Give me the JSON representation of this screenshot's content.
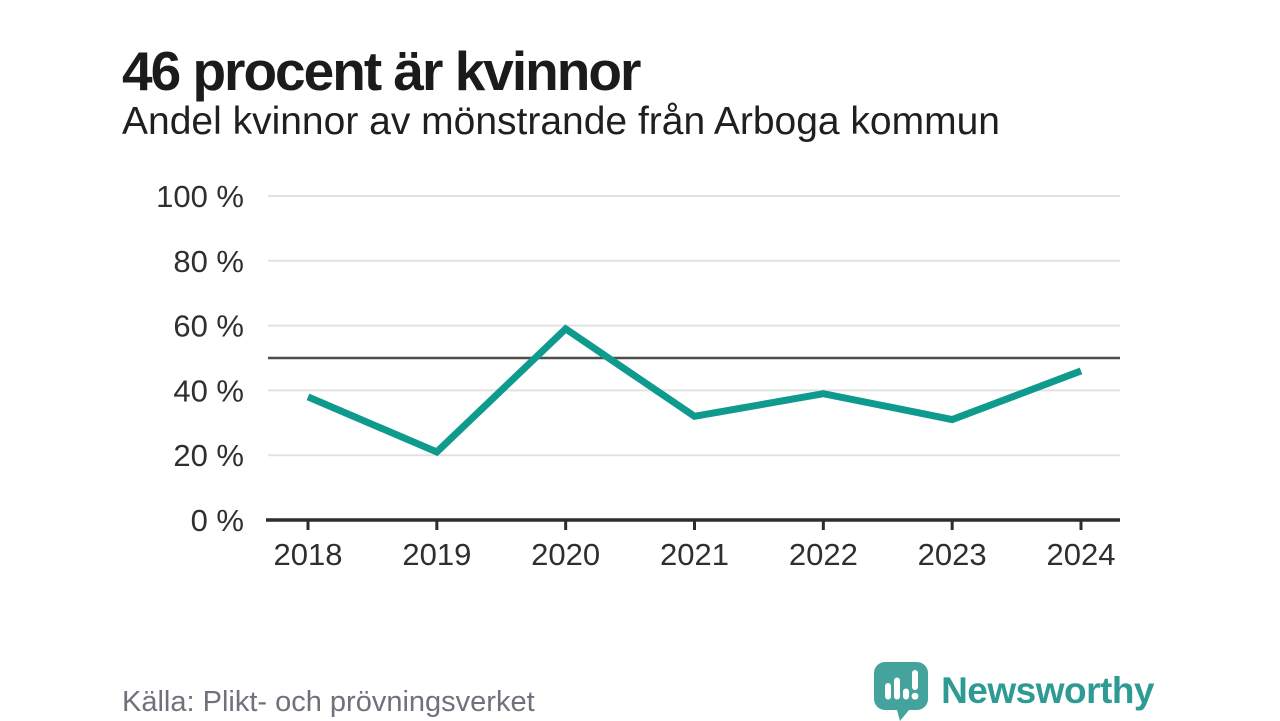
{
  "header": {
    "title": "46 procent är kvinnor",
    "subtitle": "Andel kvinnor av mönstrande från Arboga kommun"
  },
  "chart_data": {
    "type": "line",
    "title": "46 procent är kvinnor",
    "subtitle": "Andel kvinnor av mönstrande från Arboga kommun",
    "x": [
      2018,
      2019,
      2020,
      2021,
      2022,
      2023,
      2024
    ],
    "series": [
      {
        "name": "Andel kvinnor av mönstrande",
        "values": [
          38,
          21,
          59,
          32,
          39,
          31,
          46
        ]
      }
    ],
    "xlabel": "",
    "ylabel": "",
    "ylim": [
      0,
      100
    ],
    "yticks": [
      0,
      20,
      40,
      60,
      80,
      100
    ],
    "ytick_suffix": " %",
    "reference_line": 50,
    "grid": true,
    "legend": "none",
    "colors": {
      "line": "#0e9b8d",
      "reference_line": "#4d4d4d",
      "gridline": "#e2e2e2",
      "axis": "#2d2d2d",
      "tick_label": "#2f2f2f"
    }
  },
  "footer": {
    "source": "Källa: Plikt- och prövningsverket",
    "brand_name": "Newsworthy",
    "brand_icon": "speech-bubble-bar-chart",
    "brand_color": "#2e9a94",
    "brand_icon_color": "#45a39d"
  }
}
